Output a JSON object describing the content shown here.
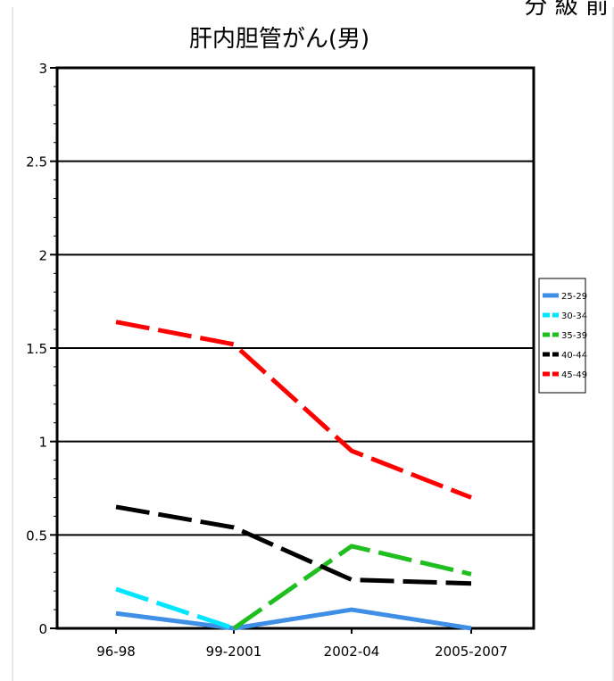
{
  "corner_text": "分 級 前",
  "chart_data": {
    "type": "line",
    "title": "肝内胆管がん(男)",
    "xlabel": "",
    "ylabel": "",
    "categories": [
      "96-98",
      "99-2001",
      "2002-04",
      "2005-2007"
    ],
    "ylim": [
      0,
      3
    ],
    "yticks": [
      0,
      0.5,
      1,
      1.5,
      2,
      2.5,
      3
    ],
    "ytick_labels": [
      "0",
      "0.5",
      "1",
      "1.5",
      "2",
      "2.5",
      "3"
    ],
    "grid": true,
    "legend_position": "right",
    "series": [
      {
        "name": "25-29",
        "values": [
          0.08,
          0.0,
          0.1,
          0.0
        ],
        "color": "#3f8fe6",
        "dash": "solid"
      },
      {
        "name": "30-34",
        "values": [
          0.21,
          0.0,
          null,
          null
        ],
        "color": "#00e6ff",
        "dash": "dashed"
      },
      {
        "name": "35-39",
        "values": [
          null,
          0.0,
          0.44,
          0.29
        ],
        "color": "#1fbf1f",
        "dash": "dashed"
      },
      {
        "name": "40-44",
        "values": [
          0.65,
          0.54,
          0.26,
          0.24
        ],
        "color": "#000000",
        "dash": "dashed"
      },
      {
        "name": "45-49",
        "values": [
          1.64,
          1.52,
          0.95,
          0.7
        ],
        "color": "#ff0000",
        "dash": "dashed"
      }
    ]
  }
}
